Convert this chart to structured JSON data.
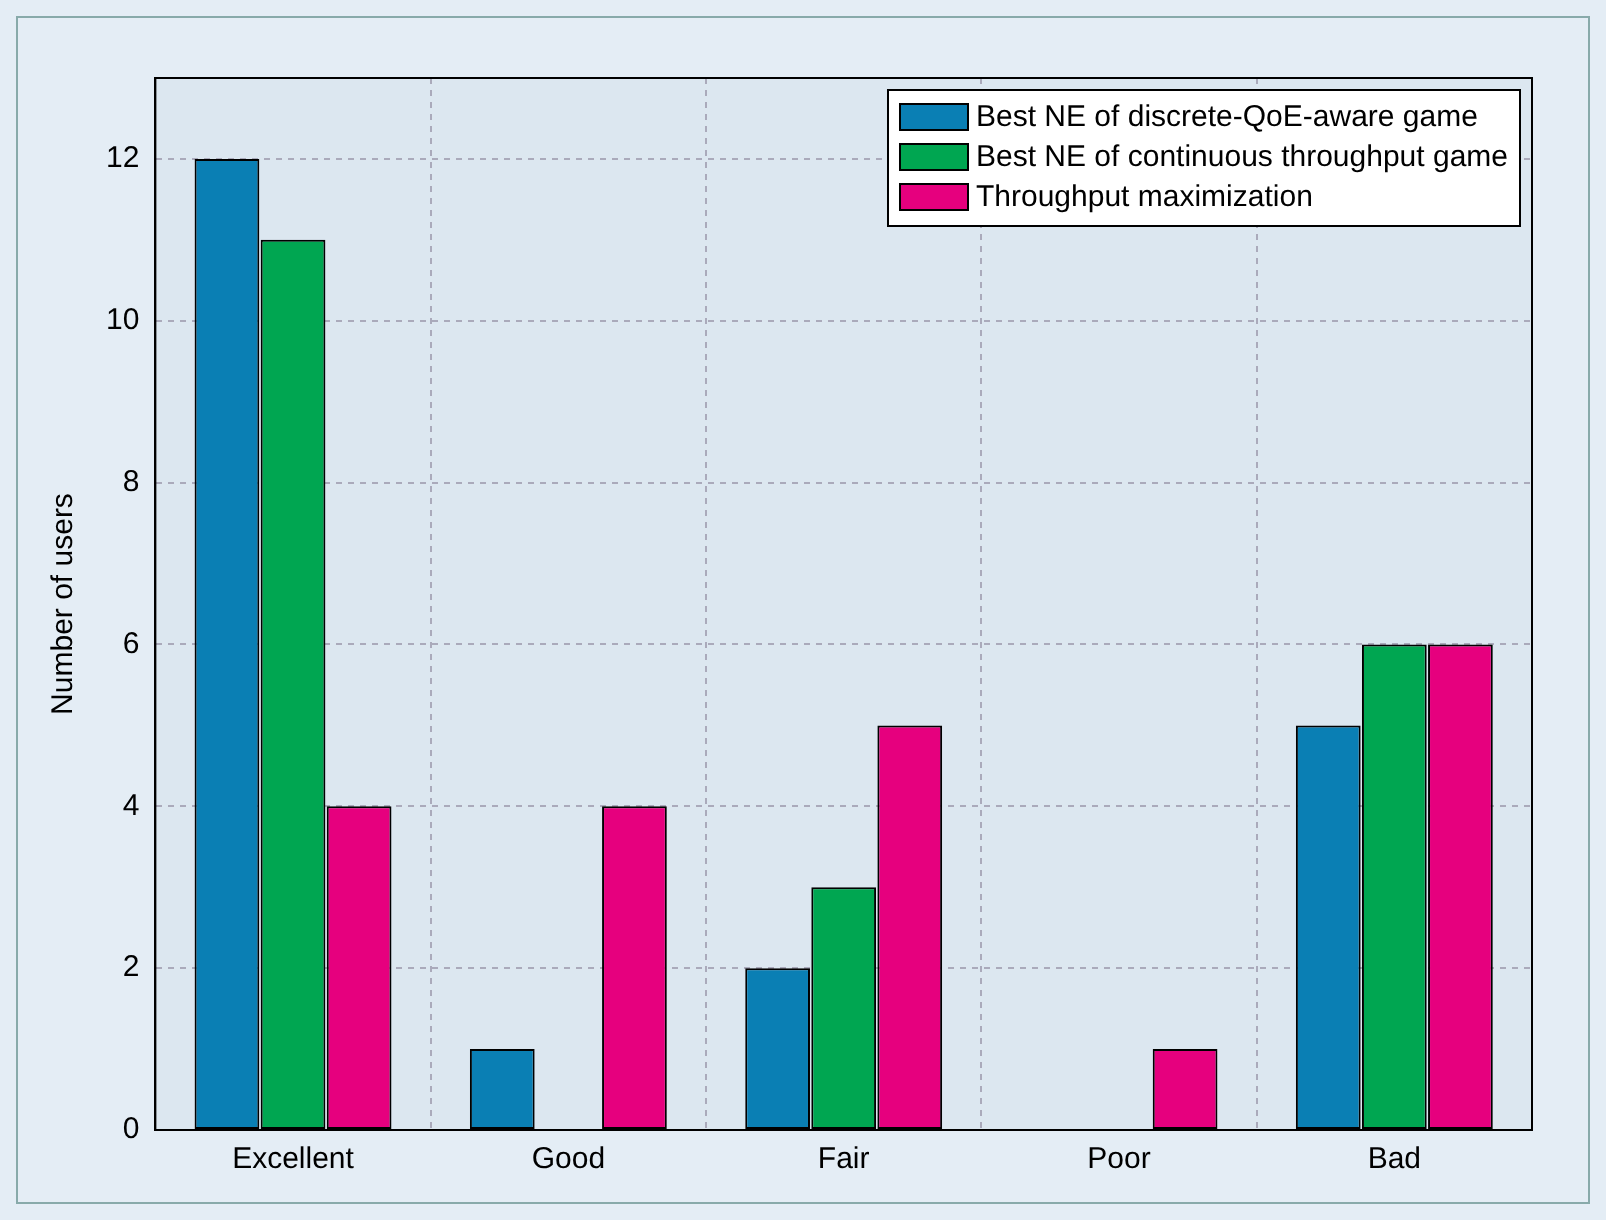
{
  "chart_data": {
    "type": "bar",
    "ylabel": "Number of users",
    "categories": [
      "Excellent",
      "Good",
      "Fair",
      "Poor",
      "Bad"
    ],
    "series": [
      {
        "name": "Best NE of discrete-QoE-aware game",
        "color": "#0a7fb4",
        "values": [
          12,
          1,
          2,
          0,
          5
        ]
      },
      {
        "name": "Best NE of continuous throughput game",
        "color": "#00a651",
        "values": [
          11,
          0,
          3,
          0,
          6
        ]
      },
      {
        "name": "Throughput maximization",
        "color": "#e6007e",
        "values": [
          4,
          4,
          5,
          1,
          6
        ]
      }
    ],
    "ylim": [
      0,
      13
    ],
    "yticks": [
      0,
      2,
      4,
      6,
      8,
      10,
      12
    ],
    "grid": true,
    "legend": "top right"
  }
}
